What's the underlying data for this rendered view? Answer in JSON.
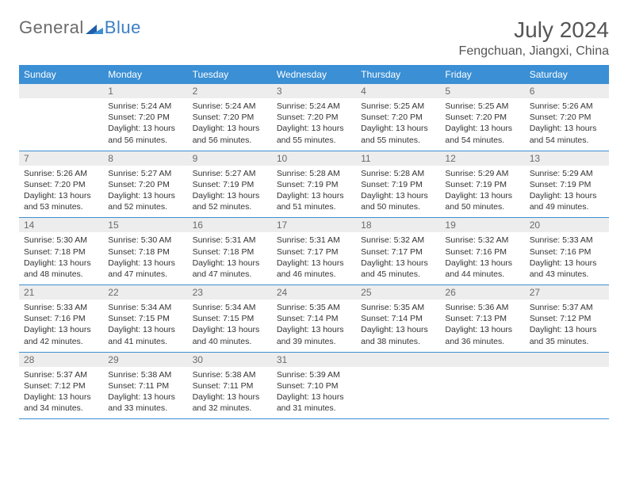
{
  "logo": {
    "text1": "General",
    "text2": "Blue"
  },
  "title": "July 2024",
  "location": "Fengchuan, Jiangxi, China",
  "colors": {
    "header_bg": "#3b8fd4",
    "header_fg": "#ffffff",
    "daynum_bg": "#ededed",
    "daynum_fg": "#6b6b6b",
    "rule": "#3b8fd4",
    "logo_gray": "#6b6b6b",
    "logo_blue": "#3b7fc4"
  },
  "day_names": [
    "Sunday",
    "Monday",
    "Tuesday",
    "Wednesday",
    "Thursday",
    "Friday",
    "Saturday"
  ],
  "weeks": [
    [
      {
        "num": "",
        "sunrise": "",
        "sunset": "",
        "daylight": ""
      },
      {
        "num": "1",
        "sunrise": "Sunrise: 5:24 AM",
        "sunset": "Sunset: 7:20 PM",
        "daylight": "Daylight: 13 hours and 56 minutes."
      },
      {
        "num": "2",
        "sunrise": "Sunrise: 5:24 AM",
        "sunset": "Sunset: 7:20 PM",
        "daylight": "Daylight: 13 hours and 56 minutes."
      },
      {
        "num": "3",
        "sunrise": "Sunrise: 5:24 AM",
        "sunset": "Sunset: 7:20 PM",
        "daylight": "Daylight: 13 hours and 55 minutes."
      },
      {
        "num": "4",
        "sunrise": "Sunrise: 5:25 AM",
        "sunset": "Sunset: 7:20 PM",
        "daylight": "Daylight: 13 hours and 55 minutes."
      },
      {
        "num": "5",
        "sunrise": "Sunrise: 5:25 AM",
        "sunset": "Sunset: 7:20 PM",
        "daylight": "Daylight: 13 hours and 54 minutes."
      },
      {
        "num": "6",
        "sunrise": "Sunrise: 5:26 AM",
        "sunset": "Sunset: 7:20 PM",
        "daylight": "Daylight: 13 hours and 54 minutes."
      }
    ],
    [
      {
        "num": "7",
        "sunrise": "Sunrise: 5:26 AM",
        "sunset": "Sunset: 7:20 PM",
        "daylight": "Daylight: 13 hours and 53 minutes."
      },
      {
        "num": "8",
        "sunrise": "Sunrise: 5:27 AM",
        "sunset": "Sunset: 7:20 PM",
        "daylight": "Daylight: 13 hours and 52 minutes."
      },
      {
        "num": "9",
        "sunrise": "Sunrise: 5:27 AM",
        "sunset": "Sunset: 7:19 PM",
        "daylight": "Daylight: 13 hours and 52 minutes."
      },
      {
        "num": "10",
        "sunrise": "Sunrise: 5:28 AM",
        "sunset": "Sunset: 7:19 PM",
        "daylight": "Daylight: 13 hours and 51 minutes."
      },
      {
        "num": "11",
        "sunrise": "Sunrise: 5:28 AM",
        "sunset": "Sunset: 7:19 PM",
        "daylight": "Daylight: 13 hours and 50 minutes."
      },
      {
        "num": "12",
        "sunrise": "Sunrise: 5:29 AM",
        "sunset": "Sunset: 7:19 PM",
        "daylight": "Daylight: 13 hours and 50 minutes."
      },
      {
        "num": "13",
        "sunrise": "Sunrise: 5:29 AM",
        "sunset": "Sunset: 7:19 PM",
        "daylight": "Daylight: 13 hours and 49 minutes."
      }
    ],
    [
      {
        "num": "14",
        "sunrise": "Sunrise: 5:30 AM",
        "sunset": "Sunset: 7:18 PM",
        "daylight": "Daylight: 13 hours and 48 minutes."
      },
      {
        "num": "15",
        "sunrise": "Sunrise: 5:30 AM",
        "sunset": "Sunset: 7:18 PM",
        "daylight": "Daylight: 13 hours and 47 minutes."
      },
      {
        "num": "16",
        "sunrise": "Sunrise: 5:31 AM",
        "sunset": "Sunset: 7:18 PM",
        "daylight": "Daylight: 13 hours and 47 minutes."
      },
      {
        "num": "17",
        "sunrise": "Sunrise: 5:31 AM",
        "sunset": "Sunset: 7:17 PM",
        "daylight": "Daylight: 13 hours and 46 minutes."
      },
      {
        "num": "18",
        "sunrise": "Sunrise: 5:32 AM",
        "sunset": "Sunset: 7:17 PM",
        "daylight": "Daylight: 13 hours and 45 minutes."
      },
      {
        "num": "19",
        "sunrise": "Sunrise: 5:32 AM",
        "sunset": "Sunset: 7:16 PM",
        "daylight": "Daylight: 13 hours and 44 minutes."
      },
      {
        "num": "20",
        "sunrise": "Sunrise: 5:33 AM",
        "sunset": "Sunset: 7:16 PM",
        "daylight": "Daylight: 13 hours and 43 minutes."
      }
    ],
    [
      {
        "num": "21",
        "sunrise": "Sunrise: 5:33 AM",
        "sunset": "Sunset: 7:16 PM",
        "daylight": "Daylight: 13 hours and 42 minutes."
      },
      {
        "num": "22",
        "sunrise": "Sunrise: 5:34 AM",
        "sunset": "Sunset: 7:15 PM",
        "daylight": "Daylight: 13 hours and 41 minutes."
      },
      {
        "num": "23",
        "sunrise": "Sunrise: 5:34 AM",
        "sunset": "Sunset: 7:15 PM",
        "daylight": "Daylight: 13 hours and 40 minutes."
      },
      {
        "num": "24",
        "sunrise": "Sunrise: 5:35 AM",
        "sunset": "Sunset: 7:14 PM",
        "daylight": "Daylight: 13 hours and 39 minutes."
      },
      {
        "num": "25",
        "sunrise": "Sunrise: 5:35 AM",
        "sunset": "Sunset: 7:14 PM",
        "daylight": "Daylight: 13 hours and 38 minutes."
      },
      {
        "num": "26",
        "sunrise": "Sunrise: 5:36 AM",
        "sunset": "Sunset: 7:13 PM",
        "daylight": "Daylight: 13 hours and 36 minutes."
      },
      {
        "num": "27",
        "sunrise": "Sunrise: 5:37 AM",
        "sunset": "Sunset: 7:12 PM",
        "daylight": "Daylight: 13 hours and 35 minutes."
      }
    ],
    [
      {
        "num": "28",
        "sunrise": "Sunrise: 5:37 AM",
        "sunset": "Sunset: 7:12 PM",
        "daylight": "Daylight: 13 hours and 34 minutes."
      },
      {
        "num": "29",
        "sunrise": "Sunrise: 5:38 AM",
        "sunset": "Sunset: 7:11 PM",
        "daylight": "Daylight: 13 hours and 33 minutes."
      },
      {
        "num": "30",
        "sunrise": "Sunrise: 5:38 AM",
        "sunset": "Sunset: 7:11 PM",
        "daylight": "Daylight: 13 hours and 32 minutes."
      },
      {
        "num": "31",
        "sunrise": "Sunrise: 5:39 AM",
        "sunset": "Sunset: 7:10 PM",
        "daylight": "Daylight: 13 hours and 31 minutes."
      },
      {
        "num": "",
        "sunrise": "",
        "sunset": "",
        "daylight": ""
      },
      {
        "num": "",
        "sunrise": "",
        "sunset": "",
        "daylight": ""
      },
      {
        "num": "",
        "sunrise": "",
        "sunset": "",
        "daylight": ""
      }
    ]
  ]
}
